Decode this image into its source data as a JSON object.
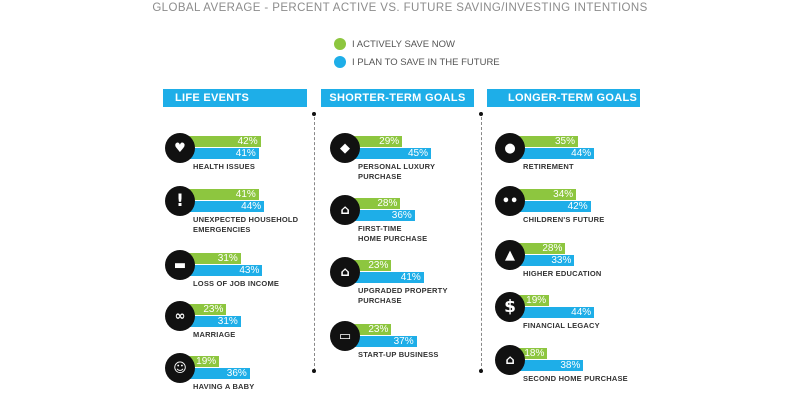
{
  "chart_data": {
    "type": "bar",
    "title": "GLOBAL AVERAGE - PERCENT ACTIVE VS. FUTURE SAVING/INVESTING INTENTIONS",
    "unit": "%",
    "series": [
      {
        "key": "active",
        "name": "I ACTIVELY SAVE NOW",
        "color": "#8dc63f"
      },
      {
        "key": "future",
        "name": "I PLAN TO SAVE IN THE FUTURE",
        "color": "#1eaee8"
      }
    ],
    "groups": [
      {
        "title": "LIFE EVENTS",
        "items": [
          {
            "label": "HEALTH ISSUES",
            "icon": "heart-pulse-icon",
            "active": 42,
            "future": 41
          },
          {
            "label": "UNEXPECTED HOUSEHOLD\nEMERGENCIES",
            "icon": "exclamation-icon",
            "active": 41,
            "future": 44
          },
          {
            "label": "LOSS OF JOB INCOME",
            "icon": "briefcase-icon",
            "active": 31,
            "future": 43
          },
          {
            "label": "MARRIAGE",
            "icon": "rings-icon",
            "active": 23,
            "future": 31
          },
          {
            "label": "HAVING A BABY",
            "icon": "baby-icon",
            "active": 19,
            "future": 36
          }
        ]
      },
      {
        "title": "SHORTER-TERM GOALS",
        "items": [
          {
            "label": "PERSONAL LUXURY\nPURCHASE",
            "icon": "diamond-icon",
            "active": 29,
            "future": 45
          },
          {
            "label": "FIRST-TIME\nHOME PURCHASE",
            "icon": "house-icon",
            "active": 28,
            "future": 36
          },
          {
            "label": "UPGRADED PROPERTY\nPURCHASE",
            "icon": "house-icon",
            "active": 23,
            "future": 41
          },
          {
            "label": "START-UP BUSINESS",
            "icon": "open-sign-icon",
            "active": 23,
            "future": 37
          }
        ]
      },
      {
        "title": "LONGER-TERM GOALS",
        "items": [
          {
            "label": "RETIREMENT",
            "icon": "piggy-bank-icon",
            "active": 35,
            "future": 44
          },
          {
            "label": "CHILDREN'S FUTURE",
            "icon": "people-icon",
            "active": 34,
            "future": 42
          },
          {
            "label": "HIGHER EDUCATION",
            "icon": "graduation-cap-icon",
            "active": 28,
            "future": 33
          },
          {
            "label": "FINANCIAL LEGACY",
            "icon": "dollar-icon",
            "active": 19,
            "future": 44
          },
          {
            "label": "SECOND HOME PURCHASE",
            "icon": "house-icon",
            "active": 18,
            "future": 38
          }
        ]
      }
    ]
  },
  "icon_glyphs": {
    "heart-pulse-icon": "♥",
    "exclamation-icon": "!",
    "briefcase-icon": "▬",
    "rings-icon": "∞",
    "baby-icon": "☺",
    "diamond-icon": "◆",
    "house-icon": "⌂",
    "open-sign-icon": "▭",
    "piggy-bank-icon": "●",
    "people-icon": "••",
    "graduation-cap-icon": "▲",
    "dollar-icon": "$"
  }
}
